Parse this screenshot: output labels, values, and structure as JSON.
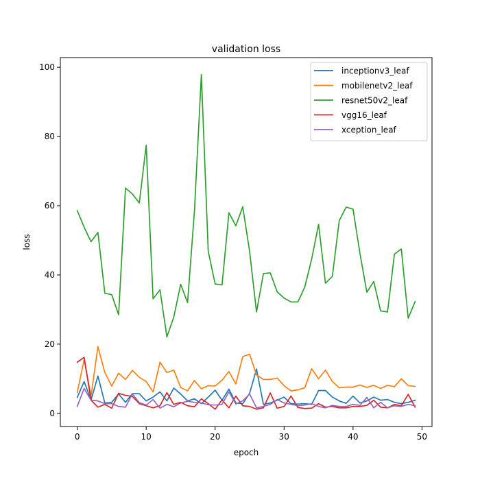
{
  "chart_data": {
    "type": "line",
    "title": "validation loss",
    "xlabel": "epoch",
    "ylabel": "loss",
    "xlim": [
      -2.45,
      51.45
    ],
    "ylim": [
      -3.8,
      102.8
    ],
    "xticks": [
      0,
      10,
      20,
      30,
      40,
      50
    ],
    "yticks": [
      0,
      20,
      40,
      60,
      80,
      100
    ],
    "grid": false,
    "legend_position": "top-right",
    "x": [
      0,
      1,
      2,
      3,
      4,
      5,
      6,
      7,
      8,
      9,
      10,
      11,
      12,
      13,
      14,
      15,
      16,
      17,
      18,
      19,
      20,
      21,
      22,
      23,
      24,
      25,
      26,
      27,
      28,
      29,
      30,
      31,
      32,
      33,
      34,
      35,
      36,
      37,
      38,
      39,
      40,
      41,
      42,
      43,
      44,
      45,
      46,
      47,
      48,
      49
    ],
    "series": [
      {
        "name": "inceptionv3_leaf",
        "color": "#1f77b4",
        "values": [
          4.6,
          9.2,
          3.8,
          10.8,
          3.0,
          3.2,
          5.6,
          3.2,
          5.7,
          5.7,
          3.6,
          4.7,
          6.2,
          3.6,
          7.3,
          5.6,
          3.6,
          4.2,
          2.8,
          4.7,
          6.7,
          3.8,
          7.0,
          3.0,
          2.8,
          5.8,
          12.8,
          2.6,
          3.0,
          3.8,
          4.7,
          2.8,
          2.7,
          2.8,
          2.6,
          6.6,
          6.6,
          4.7,
          3.6,
          2.9,
          5.0,
          3.0,
          3.6,
          4.7,
          3.8,
          4.0,
          3.2,
          2.8,
          3.2,
          3.8
        ]
      },
      {
        "name": "mobilenetv2_leaf",
        "color": "#ff7f0e",
        "values": [
          6.0,
          15.5,
          5.0,
          19.3,
          11.8,
          7.9,
          11.6,
          9.8,
          12.4,
          10.4,
          9.2,
          6.2,
          14.8,
          11.8,
          12.5,
          7.5,
          6.5,
          9.5,
          7.1,
          8.0,
          7.9,
          9.6,
          12.1,
          8.5,
          16.4,
          17.1,
          11.1,
          9.8,
          9.8,
          10.2,
          8.0,
          6.5,
          6.8,
          7.4,
          12.9,
          10.0,
          12.5,
          9.2,
          7.4,
          7.6,
          7.6,
          8.2,
          7.5,
          8.1,
          7.2,
          8.1,
          7.7,
          10.0,
          8.0,
          7.8
        ]
      },
      {
        "name": "resnet50v2_leaf",
        "color": "#2ca02c",
        "values": [
          58.6,
          53.8,
          49.6,
          52.3,
          34.7,
          34.3,
          28.5,
          65.1,
          63.4,
          60.8,
          77.5,
          33.1,
          35.7,
          22.1,
          27.8,
          37.3,
          32.0,
          58.5,
          97.9,
          46.8,
          37.4,
          37.1,
          58.0,
          54.2,
          59.7,
          46.8,
          29.3,
          40.4,
          40.6,
          35.1,
          33.3,
          32.2,
          32.2,
          36.5,
          44.6,
          54.6,
          37.6,
          39.6,
          55.7,
          59.6,
          59.0,
          46.2,
          35.0,
          38.1,
          29.6,
          29.3,
          46.0,
          47.5,
          27.5,
          32.3
        ]
      },
      {
        "name": "vgg16_leaf",
        "color": "#d62728",
        "values": [
          14.8,
          16.2,
          3.8,
          1.8,
          2.6,
          1.5,
          5.8,
          5.2,
          4.9,
          2.8,
          2.2,
          1.6,
          2.2,
          6.0,
          2.6,
          3.2,
          2.2,
          1.9,
          4.2,
          2.8,
          1.2,
          3.9,
          1.6,
          5.0,
          2.2,
          2.0,
          1.2,
          1.6,
          5.9,
          1.5,
          2.0,
          5.0,
          1.7,
          1.4,
          1.5,
          2.8,
          1.8,
          2.0,
          1.6,
          1.6,
          2.0,
          2.0,
          2.3,
          3.8,
          1.8,
          1.6,
          2.6,
          2.2,
          5.5,
          1.8
        ]
      },
      {
        "name": "xception_leaf",
        "color": "#9467bd",
        "values": [
          2.0,
          7.2,
          3.8,
          3.6,
          2.8,
          2.8,
          2.0,
          1.8,
          5.6,
          3.1,
          2.4,
          4.0,
          1.5,
          2.6,
          1.9,
          3.0,
          3.5,
          3.2,
          3.0,
          2.5,
          2.4,
          2.6,
          6.2,
          2.7,
          3.6,
          5.6,
          1.6,
          2.0,
          2.6,
          4.0,
          3.0,
          2.6,
          2.2,
          2.4,
          2.8,
          2.0,
          1.6,
          2.3,
          2.0,
          2.0,
          2.6,
          2.3,
          4.6,
          1.6,
          3.2,
          1.6,
          2.2,
          2.0,
          2.6,
          2.2
        ]
      }
    ]
  }
}
